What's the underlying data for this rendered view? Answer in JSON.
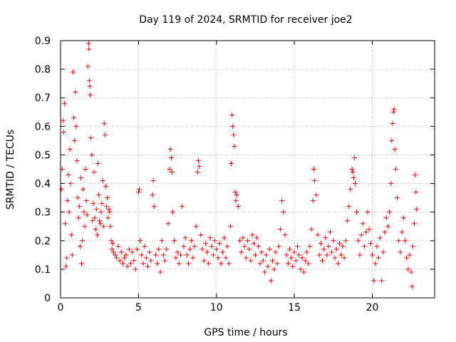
{
  "chart_data": {
    "type": "scatter",
    "title": "Day 119 of 2024, SRMTID for receiver joe2",
    "xlabel": "GPS time / hours",
    "ylabel": "SRMTID / TECUs",
    "xlim": [
      0,
      24
    ],
    "ylim": [
      0,
      0.9
    ],
    "x_ticks": [
      0,
      5,
      10,
      15,
      20
    ],
    "y_ticks": [
      0,
      0.1,
      0.2,
      0.3,
      0.4,
      0.5,
      0.6,
      0.7,
      0.8,
      0.9
    ],
    "x_tick_labels": [
      "0",
      "5",
      "10",
      "15",
      "20"
    ],
    "y_tick_labels": [
      "0",
      "0.1",
      "0.2",
      "0.3",
      "0.4",
      "0.5",
      "0.6",
      "0.7",
      "0.8",
      "0.9"
    ],
    "grid": true,
    "marker": "+",
    "series": [
      {
        "name": "SRMTID",
        "color": "#ff0000",
        "points": [
          [
            0.05,
            0.38
          ],
          [
            0.1,
            0.45
          ],
          [
            0.15,
            0.62
          ],
          [
            0.2,
            0.58
          ],
          [
            0.25,
            0.68
          ],
          [
            0.3,
            0.26
          ],
          [
            0.35,
            0.11
          ],
          [
            0.4,
            0.14
          ],
          [
            0.45,
            0.34
          ],
          [
            0.5,
            0.43
          ],
          [
            0.55,
            0.3
          ],
          [
            0.6,
            0.52
          ],
          [
            0.65,
            0.4
          ],
          [
            0.7,
            0.22
          ],
          [
            0.75,
            0.15
          ],
          [
            0.8,
            0.79
          ],
          [
            0.85,
            0.63
          ],
          [
            0.9,
            0.55
          ],
          [
            0.95,
            0.72
          ],
          [
            1.0,
            0.6
          ],
          [
            1.05,
            0.48
          ],
          [
            1.1,
            0.35
          ],
          [
            1.15,
            0.28
          ],
          [
            1.2,
            0.32
          ],
          [
            1.25,
            0.18
          ],
          [
            1.3,
            0.42
          ],
          [
            1.35,
            0.12
          ],
          [
            1.4,
            0.2
          ],
          [
            1.45,
            0.38
          ],
          [
            1.5,
            0.3
          ],
          [
            1.55,
            0.25
          ],
          [
            1.6,
            0.45
          ],
          [
            1.65,
            0.34
          ],
          [
            1.7,
            0.29
          ],
          [
            1.75,
            0.81
          ],
          [
            1.8,
            0.89
          ],
          [
            1.82,
            0.87
          ],
          [
            1.85,
            0.76
          ],
          [
            1.88,
            0.74
          ],
          [
            1.9,
            0.71
          ],
          [
            1.95,
            0.56
          ],
          [
            2.0,
            0.5
          ],
          [
            2.05,
            0.27
          ],
          [
            2.1,
            0.33
          ],
          [
            2.15,
            0.44
          ],
          [
            2.2,
            0.28
          ],
          [
            2.25,
            0.24
          ],
          [
            2.3,
            0.31
          ],
          [
            2.35,
            0.22
          ],
          [
            2.4,
            0.47
          ],
          [
            2.45,
            0.36
          ],
          [
            2.5,
            0.27
          ],
          [
            2.55,
            0.26
          ],
          [
            2.6,
            0.3
          ],
          [
            2.65,
            0.33
          ],
          [
            2.7,
            0.41
          ],
          [
            2.75,
            0.25
          ],
          [
            2.8,
            0.61
          ],
          [
            2.85,
            0.57
          ],
          [
            2.9,
            0.39
          ],
          [
            2.95,
            0.32
          ],
          [
            3.0,
            0.35
          ],
          [
            3.05,
            0.28
          ],
          [
            3.1,
            0.31
          ],
          [
            3.15,
            0.3
          ],
          [
            3.2,
            0.25
          ],
          [
            3.25,
            0.2
          ],
          [
            3.3,
            0.17
          ],
          [
            3.35,
            0.19
          ],
          [
            3.4,
            0.16
          ],
          [
            3.5,
            0.15
          ],
          [
            3.6,
            0.14
          ],
          [
            3.7,
            0.18
          ],
          [
            3.8,
            0.13
          ],
          [
            3.9,
            0.16
          ],
          [
            4.0,
            0.12
          ],
          [
            4.1,
            0.14
          ],
          [
            4.2,
            0.15
          ],
          [
            4.3,
            0.11
          ],
          [
            4.4,
            0.17
          ],
          [
            4.5,
            0.12
          ],
          [
            4.6,
            0.16
          ],
          [
            4.7,
            0.13
          ],
          [
            4.8,
            0.1
          ],
          [
            4.9,
            0.17
          ],
          [
            5.0,
            0.37
          ],
          [
            5.05,
            0.38
          ],
          [
            5.1,
            0.2
          ],
          [
            5.2,
            0.15
          ],
          [
            5.3,
            0.12
          ],
          [
            5.4,
            0.18
          ],
          [
            5.5,
            0.14
          ],
          [
            5.6,
            0.11
          ],
          [
            5.7,
            0.16
          ],
          [
            5.8,
            0.13
          ],
          [
            5.9,
            0.36
          ],
          [
            5.95,
            0.41
          ],
          [
            6.0,
            0.32
          ],
          [
            6.1,
            0.15
          ],
          [
            6.2,
            0.12
          ],
          [
            6.3,
            0.17
          ],
          [
            6.4,
            0.09
          ],
          [
            6.5,
            0.2
          ],
          [
            6.6,
            0.15
          ],
          [
            6.7,
            0.13
          ],
          [
            6.8,
            0.17
          ],
          [
            6.9,
            0.26
          ],
          [
            7.0,
            0.45
          ],
          [
            7.05,
            0.52
          ],
          [
            7.1,
            0.49
          ],
          [
            7.15,
            0.44
          ],
          [
            7.2,
            0.3
          ],
          [
            7.3,
            0.2
          ],
          [
            7.4,
            0.14
          ],
          [
            7.5,
            0.16
          ],
          [
            7.6,
            0.12
          ],
          [
            7.7,
            0.15
          ],
          [
            7.8,
            0.32
          ],
          [
            7.9,
            0.18
          ],
          [
            8.0,
            0.21
          ],
          [
            8.1,
            0.15
          ],
          [
            8.2,
            0.12
          ],
          [
            8.3,
            0.17
          ],
          [
            8.4,
            0.2
          ],
          [
            8.5,
            0.14
          ],
          [
            8.6,
            0.18
          ],
          [
            8.7,
            0.25
          ],
          [
            8.8,
            0.44
          ],
          [
            8.85,
            0.48
          ],
          [
            8.9,
            0.46
          ],
          [
            9.0,
            0.22
          ],
          [
            9.1,
            0.17
          ],
          [
            9.2,
            0.13
          ],
          [
            9.3,
            0.19
          ],
          [
            9.4,
            0.16
          ],
          [
            9.5,
            0.12
          ],
          [
            9.6,
            0.21
          ],
          [
            9.7,
            0.18
          ],
          [
            9.8,
            0.15
          ],
          [
            9.9,
            0.2
          ],
          [
            10.0,
            0.17
          ],
          [
            10.1,
            0.14
          ],
          [
            10.2,
            0.19
          ],
          [
            10.3,
            0.12
          ],
          [
            10.4,
            0.16
          ],
          [
            10.5,
            0.21
          ],
          [
            10.6,
            0.14
          ],
          [
            10.7,
            0.18
          ],
          [
            10.8,
            0.12
          ],
          [
            10.9,
            0.25
          ],
          [
            10.95,
            0.47
          ],
          [
            11.0,
            0.64
          ],
          [
            11.05,
            0.6
          ],
          [
            11.1,
            0.57
          ],
          [
            11.15,
            0.53
          ],
          [
            11.2,
            0.37
          ],
          [
            11.25,
            0.34
          ],
          [
            11.3,
            0.36
          ],
          [
            11.4,
            0.32
          ],
          [
            11.5,
            0.2
          ],
          [
            11.6,
            0.16
          ],
          [
            11.7,
            0.21
          ],
          [
            11.8,
            0.18
          ],
          [
            11.9,
            0.14
          ],
          [
            12.0,
            0.2
          ],
          [
            12.1,
            0.17
          ],
          [
            12.2,
            0.13
          ],
          [
            12.3,
            0.22
          ],
          [
            12.4,
            0.19
          ],
          [
            12.5,
            0.15
          ],
          [
            12.6,
            0.21
          ],
          [
            12.7,
            0.18
          ],
          [
            12.8,
            0.12
          ],
          [
            12.9,
            0.16
          ],
          [
            13.0,
            0.13
          ],
          [
            13.1,
            0.09
          ],
          [
            13.2,
            0.15
          ],
          [
            13.3,
            0.11
          ],
          [
            13.4,
            0.17
          ],
          [
            13.5,
            0.06
          ],
          [
            13.6,
            0.13
          ],
          [
            13.7,
            0.1
          ],
          [
            13.8,
            0.16
          ],
          [
            13.9,
            0.12
          ],
          [
            14.0,
            0.18
          ],
          [
            14.1,
            0.24
          ],
          [
            14.2,
            0.34
          ],
          [
            14.3,
            0.3
          ],
          [
            14.4,
            0.22
          ],
          [
            14.5,
            0.15
          ],
          [
            14.6,
            0.12
          ],
          [
            14.7,
            0.17
          ],
          [
            14.8,
            0.14
          ],
          [
            14.9,
            0.11
          ],
          [
            15.0,
            0.16
          ],
          [
            15.1,
            0.13
          ],
          [
            15.2,
            0.18
          ],
          [
            15.3,
            0.15
          ],
          [
            15.4,
            0.1
          ],
          [
            15.5,
            0.14
          ],
          [
            15.6,
            0.09
          ],
          [
            15.7,
            0.13
          ],
          [
            15.8,
            0.16
          ],
          [
            15.9,
            0.12
          ],
          [
            16.0,
            0.18
          ],
          [
            16.1,
            0.24
          ],
          [
            16.2,
            0.34
          ],
          [
            16.25,
            0.45
          ],
          [
            16.3,
            0.41
          ],
          [
            16.4,
            0.36
          ],
          [
            16.5,
            0.22
          ],
          [
            16.6,
            0.15
          ],
          [
            16.7,
            0.19
          ],
          [
            16.8,
            0.13
          ],
          [
            16.9,
            0.17
          ],
          [
            17.0,
            0.21
          ],
          [
            17.1,
            0.15
          ],
          [
            17.2,
            0.18
          ],
          [
            17.3,
            0.23
          ],
          [
            17.4,
            0.16
          ],
          [
            17.5,
            0.2
          ],
          [
            17.6,
            0.14
          ],
          [
            17.7,
            0.17
          ],
          [
            17.8,
            0.12
          ],
          [
            17.9,
            0.19
          ],
          [
            18.0,
            0.15
          ],
          [
            18.1,
            0.18
          ],
          [
            18.2,
            0.14
          ],
          [
            18.3,
            0.2
          ],
          [
            18.4,
            0.27
          ],
          [
            18.5,
            0.32
          ],
          [
            18.6,
            0.38
          ],
          [
            18.7,
            0.45
          ],
          [
            18.75,
            0.44
          ],
          [
            18.8,
            0.42
          ],
          [
            18.85,
            0.49
          ],
          [
            18.9,
            0.4
          ],
          [
            19.0,
            0.3
          ],
          [
            19.1,
            0.2
          ],
          [
            19.2,
            0.15
          ],
          [
            19.3,
            0.22
          ],
          [
            19.4,
            0.26
          ],
          [
            19.5,
            0.18
          ],
          [
            19.6,
            0.23
          ],
          [
            19.7,
            0.3
          ],
          [
            19.8,
            0.24
          ],
          [
            19.9,
            0.19
          ],
          [
            20.0,
            0.15
          ],
          [
            20.1,
            0.06
          ],
          [
            20.2,
            0.12
          ],
          [
            20.3,
            0.18
          ],
          [
            20.4,
            0.14
          ],
          [
            20.5,
            0.21
          ],
          [
            20.6,
            0.06
          ],
          [
            20.7,
            0.16
          ],
          [
            20.8,
            0.23
          ],
          [
            20.9,
            0.28
          ],
          [
            21.0,
            0.25
          ],
          [
            21.1,
            0.3
          ],
          [
            21.2,
            0.4
          ],
          [
            21.25,
            0.55
          ],
          [
            21.3,
            0.61
          ],
          [
            21.35,
            0.65
          ],
          [
            21.4,
            0.66
          ],
          [
            21.45,
            0.52
          ],
          [
            21.5,
            0.45
          ],
          [
            21.6,
            0.35
          ],
          [
            21.7,
            0.2
          ],
          [
            21.8,
            0.16
          ],
          [
            21.9,
            0.23
          ],
          [
            22.0,
            0.28
          ],
          [
            22.1,
            0.2
          ],
          [
            22.2,
            0.14
          ],
          [
            22.3,
            0.1
          ],
          [
            22.4,
            0.15
          ],
          [
            22.5,
            0.09
          ],
          [
            22.55,
            0.04
          ],
          [
            22.6,
            0.18
          ],
          [
            22.7,
            0.26
          ],
          [
            22.75,
            0.43
          ],
          [
            22.8,
            0.37
          ],
          [
            22.85,
            0.31
          ]
        ]
      }
    ]
  }
}
